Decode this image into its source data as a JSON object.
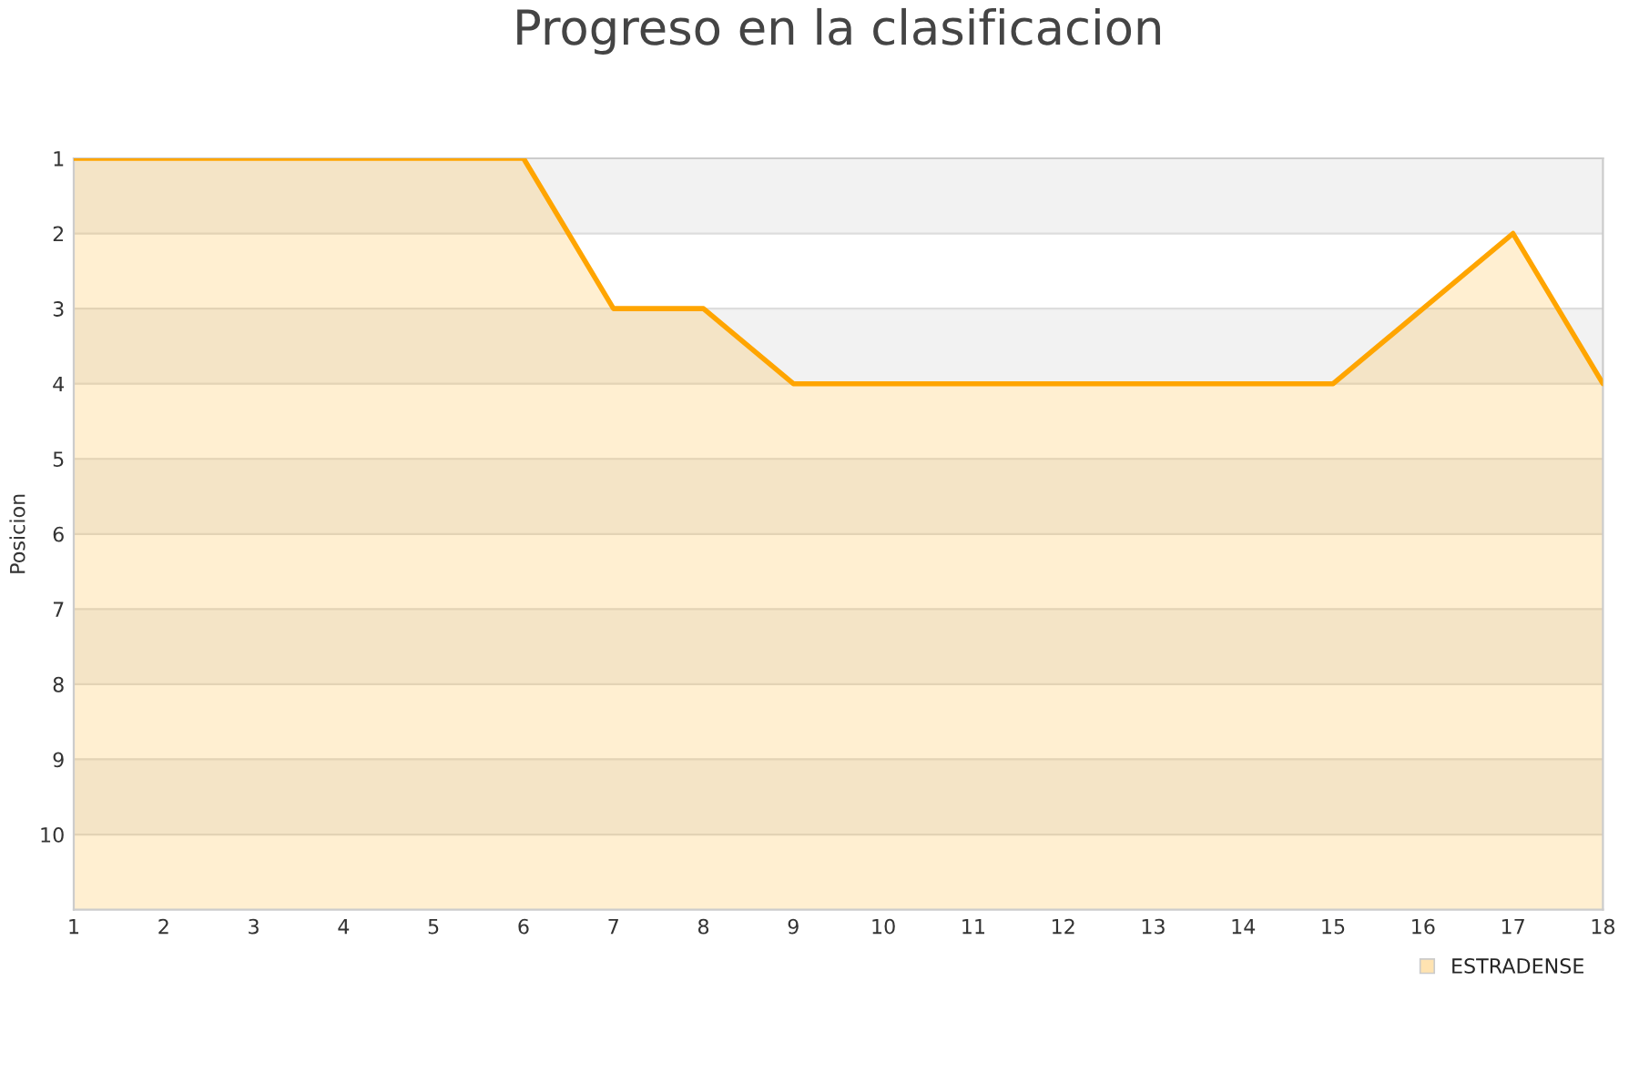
{
  "chart_data": {
    "type": "line",
    "title": "Progreso en la clasificacion",
    "ylabel": "Posicion",
    "x": [
      1,
      2,
      3,
      4,
      5,
      6,
      7,
      8,
      9,
      10,
      11,
      12,
      13,
      14,
      15,
      16,
      17,
      18
    ],
    "series": [
      {
        "name": "ESTRADENSE",
        "color": "#ffa500",
        "values": [
          1,
          1,
          1,
          1,
          1,
          1,
          3,
          3,
          4,
          4,
          4,
          4,
          4,
          4,
          4,
          3,
          2,
          4
        ],
        "lower": [
          1,
          1,
          1,
          1,
          1,
          1,
          3,
          3,
          4,
          4,
          4,
          4,
          4,
          4,
          4,
          3,
          2,
          4
        ],
        "upper": [
          11,
          11,
          11,
          11,
          11,
          11,
          11,
          11,
          11,
          11,
          11,
          11,
          11,
          11,
          11,
          11,
          11,
          11
        ]
      }
    ],
    "xlim": [
      1,
      18
    ],
    "xticks": [
      1,
      2,
      3,
      4,
      5,
      6,
      7,
      8,
      9,
      10,
      11,
      12,
      13,
      14,
      15,
      16,
      17,
      18
    ],
    "ylim": [
      11,
      1
    ],
    "yticks": [
      1,
      2,
      3,
      4,
      5,
      6,
      7,
      8,
      9,
      10
    ],
    "bands": [
      {
        "axis": "y",
        "from": 1,
        "to": 2,
        "color": "#f2f2f2"
      },
      {
        "axis": "y",
        "from": 3,
        "to": 4,
        "color": "#f2f2f2"
      },
      {
        "axis": "y",
        "from": 5,
        "to": 6,
        "color": "#f2f2f2"
      },
      {
        "axis": "y",
        "from": 7,
        "to": 8,
        "color": "#f2f2f2"
      },
      {
        "axis": "y",
        "from": 9,
        "to": 10,
        "color": "#f2f2f2"
      }
    ],
    "grid": "y",
    "legend": "bottom right",
    "marker": "none",
    "line_style": "solid"
  }
}
